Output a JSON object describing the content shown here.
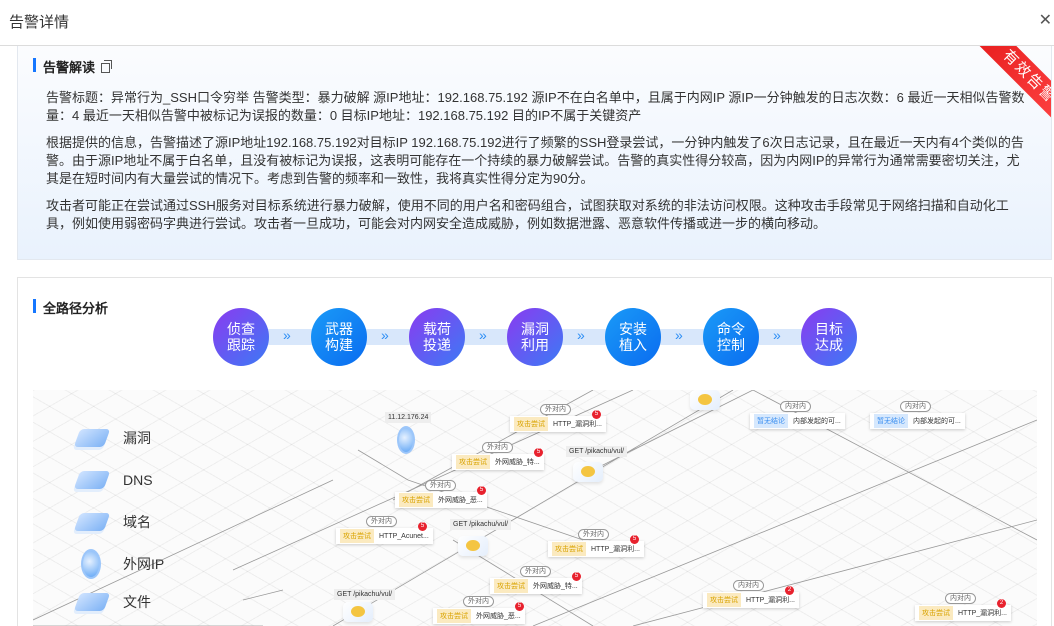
{
  "header": {
    "title": "告警详情",
    "close_icon": "close-icon"
  },
  "interpretation": {
    "title": "告警解读",
    "ribbon": "有效告警",
    "colors": {
      "ribbon": "#e81f1f",
      "accent": "#1677ff"
    },
    "paragraphs": [
      "告警标题：异常行为_SSH口令穷举 告警类型：暴力破解 源IP地址：192.168.75.192 源IP不在白名单中，且属于内网IP 源IP一分钟触发的日志次数：6 最近一天相似告警数量：4 最近一天相似告警中被标记为误报的数量：0 目标IP地址：192.168.75.192 目的IP不属于关键资产",
      "根据提供的信息，告警描述了源IP地址192.168.75.192对目标IP 192.168.75.192进行了频繁的SSH登录尝试，一分钟内触发了6次日志记录，且在最近一天内有4个类似的告警。由于源IP地址不属于白名单，且没有被标记为误报，这表明可能存在一个持续的暴力破解尝试。告警的真实性得分较高，因为内网IP的异常行为通常需要密切关注，尤其是在短时间内有大量尝试的情况下。考虑到告警的频率和一致性，我将真实性得分定为90分。",
      "攻击者可能正在尝试通过SSH服务对目标系统进行暴力破解，使用不同的用户名和密码组合，试图获取对系统的非法访问权限。这种攻击手段常见于网络扫描和自动化工具，例如使用弱密码字典进行尝试。攻击者一旦成功，可能会对内网安全造成威胁，例如数据泄露、恶意软件传播或进一步的横向移动。"
    ]
  },
  "path_analysis": {
    "title": "全路径分析",
    "steps": [
      {
        "label": "侦查跟踪",
        "style": "v"
      },
      {
        "label": "武器构建",
        "style": "b"
      },
      {
        "label": "载荷投递",
        "style": "v"
      },
      {
        "label": "漏洞利用",
        "style": "v"
      },
      {
        "label": "安装植入",
        "style": "b"
      },
      {
        "label": "命令控制",
        "style": "b"
      },
      {
        "label": "目标达成",
        "style": "v"
      }
    ],
    "arrow": "»",
    "legend": [
      {
        "label": "漏洞",
        "icon": "vulnerability-icon"
      },
      {
        "label": "DNS",
        "icon": "dns-icon"
      },
      {
        "label": "域名",
        "icon": "domain-icon"
      },
      {
        "label": "外网IP",
        "icon": "external-ip-icon"
      },
      {
        "label": "文件",
        "icon": "file-icon"
      }
    ],
    "ip_nodes": [
      {
        "label": "11.12.176.24"
      }
    ],
    "server_nodes": [
      {
        "label": ""
      },
      {
        "label": "GET /pikachu/vul/"
      },
      {
        "label": "GET /pikachu/vul/"
      },
      {
        "label": "GET /pikachu/vul/"
      }
    ],
    "alerts": [
      {
        "dir": "外对内",
        "tag": "攻击尝试",
        "kind": "atk",
        "text": "HTTP_漏洞利...",
        "count": "5"
      },
      {
        "dir": "外对内",
        "tag": "攻击尝试",
        "kind": "atk",
        "text": "外网威胁_特...",
        "count": "5"
      },
      {
        "dir": "外对内",
        "tag": "攻击尝试",
        "kind": "atk",
        "text": "外网威胁_恶...",
        "count": "5"
      },
      {
        "dir": "外对内",
        "tag": "攻击尝试",
        "kind": "atk",
        "text": "HTTP_Acunet...",
        "count": "5"
      },
      {
        "dir": "外对内",
        "tag": "攻击尝试",
        "kind": "atk",
        "text": "HTTP_漏洞利...",
        "count": "5"
      },
      {
        "dir": "外对内",
        "tag": "攻击尝试",
        "kind": "atk",
        "text": "外网威胁_特...",
        "count": "5"
      },
      {
        "dir": "外对内",
        "tag": "攻击尝试",
        "kind": "atk",
        "text": "外网威胁_恶...",
        "count": "5"
      },
      {
        "dir": "内对内",
        "tag": "暂无结论",
        "kind": "none",
        "text": "内部发起的可...",
        "count": ""
      },
      {
        "dir": "内对内",
        "tag": "暂无结论",
        "kind": "none",
        "text": "内部发起的可...",
        "count": ""
      },
      {
        "dir": "内对内",
        "tag": "攻击尝试",
        "kind": "atk",
        "text": "HTTP_漏洞利...",
        "count": "2"
      },
      {
        "dir": "内对内",
        "tag": "攻击尝试",
        "kind": "atk",
        "text": "HTTP_漏洞利...",
        "count": "2"
      }
    ]
  }
}
